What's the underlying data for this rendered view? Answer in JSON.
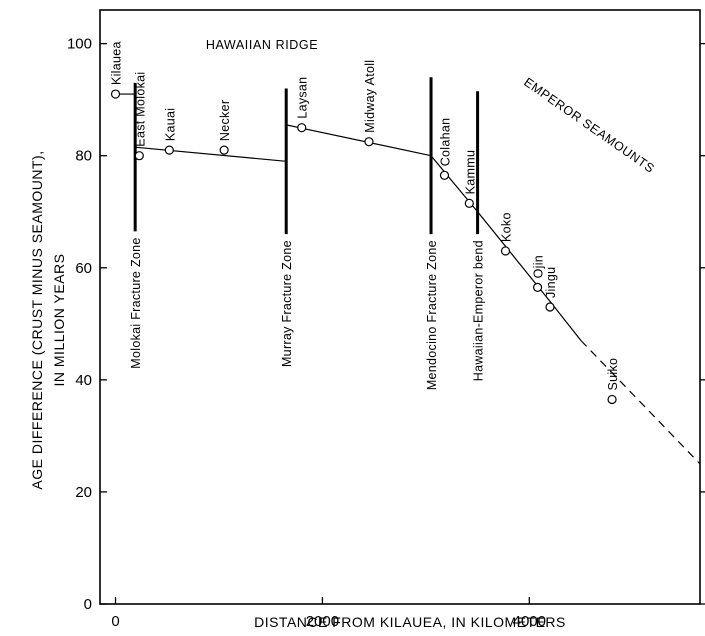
{
  "chart_data": {
    "type": "scatter",
    "xlabel": "DISTANCE FROM KILAUEA, IN KILOMETERS",
    "ylabel_lines": [
      "AGE DIFFERENCE (CRUST MINUS SEAMOUNT),",
      "IN MILLION YEARS"
    ],
    "xlim": [
      -150,
      5650
    ],
    "ylim": [
      0,
      106
    ],
    "x_ticks": [
      0,
      2000,
      4000
    ],
    "x_tick_labels": [
      "0",
      "2000",
      "4000"
    ],
    "y_ticks": [
      0,
      20,
      40,
      60,
      80,
      100
    ],
    "y_tick_labels": [
      "0",
      "20",
      "40",
      "60",
      "80",
      "100"
    ],
    "grid": false,
    "points": [
      {
        "name": "Kilauea",
        "x": 0,
        "y": 91
      },
      {
        "name": "East Molokai",
        "x": 230,
        "y": 80
      },
      {
        "name": "Kauai",
        "x": 520,
        "y": 81
      },
      {
        "name": "Necker",
        "x": 1050,
        "y": 81
      },
      {
        "name": "Laysan",
        "x": 1800,
        "y": 85
      },
      {
        "name": "Midway Atoll",
        "x": 2450,
        "y": 82.5
      },
      {
        "name": "Colahan",
        "x": 3180,
        "y": 76.5
      },
      {
        "name": "Kammu",
        "x": 3420,
        "y": 71.5
      },
      {
        "name": "Koko",
        "x": 3770,
        "y": 63
      },
      {
        "name": "Ojin",
        "x": 4080,
        "y": 56.5
      },
      {
        "name": "Jingu",
        "x": 4200,
        "y": 53
      },
      {
        "name": "Suiko",
        "x": 4800,
        "y": 36.5
      }
    ],
    "trend_segments": [
      {
        "style": "solid",
        "points": [
          [
            0,
            91
          ],
          [
            200,
            91
          ]
        ]
      },
      {
        "style": "solid",
        "points": [
          [
            200,
            81.5
          ],
          [
            1650,
            79
          ]
        ]
      },
      {
        "style": "solid",
        "points": [
          [
            1650,
            85.5
          ],
          [
            3050,
            80
          ]
        ]
      },
      {
        "style": "solid",
        "points": [
          [
            3050,
            80
          ],
          [
            3500,
            70
          ],
          [
            4200,
            54
          ],
          [
            4500,
            47
          ]
        ]
      },
      {
        "style": "dashed",
        "points": [
          [
            4500,
            47
          ],
          [
            5650,
            25
          ]
        ]
      }
    ],
    "fracture_zones": [
      {
        "name": "Molokai Fracture Zone",
        "x": 190,
        "y_top": 93,
        "y_bottom": 66.5
      },
      {
        "name": "Murray Fracture Zone",
        "x": 1650,
        "y_top": 92,
        "y_bottom": 66
      },
      {
        "name": "Mendocino Fracture Zone",
        "x": 3050,
        "y_top": 94,
        "y_bottom": 66
      },
      {
        "name": "Hawaiian-Emperor bend",
        "x": 3500,
        "y_top": 91.5,
        "y_bottom": 66
      }
    ],
    "region_labels": {
      "hawaiian_ridge": "HAWAIIAN RIDGE",
      "emperor_seamounts": "EMPEROR SEAMOUNTS"
    }
  }
}
